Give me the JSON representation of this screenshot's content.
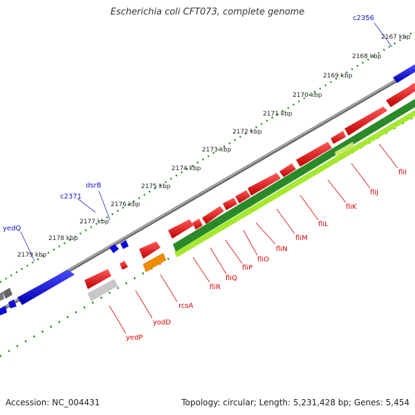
{
  "title": "Escherichia coli CFT073, complete genome",
  "footer": {
    "accession": "Accession: NC_004431",
    "info": "Topology: circular; Length: 5,231,428 bp; Genes: 5,454"
  },
  "ticks": [
    "2167 kbp",
    "2168 kbp",
    "2169 kbp",
    "2170 kbp",
    "2171 kbp",
    "2172 kbp",
    "2173 kbp",
    "2174 kbp",
    "2175 kbp",
    "2176 kbp",
    "2177 kbp",
    "2178 kbp",
    "2179 kbp"
  ],
  "genes_top": [
    "c2356",
    "dsrB",
    "c2371",
    "yedQ"
  ],
  "genes_bottom": [
    "fliI",
    "fliJ",
    "fliK",
    "fliL",
    "fliM",
    "fliN",
    "fliO",
    "fliP",
    "fliQ",
    "fliR",
    "rcsA",
    "yodD",
    "yedP"
  ],
  "colors": {
    "forward": "#0a0ae0",
    "reverse": "#ee0000",
    "backbone": "#8a8a8a",
    "green_dark": "#2a8a2a",
    "green_light": "#a6e830",
    "orange": "#f08a00",
    "tick": "#1a8a1a"
  }
}
